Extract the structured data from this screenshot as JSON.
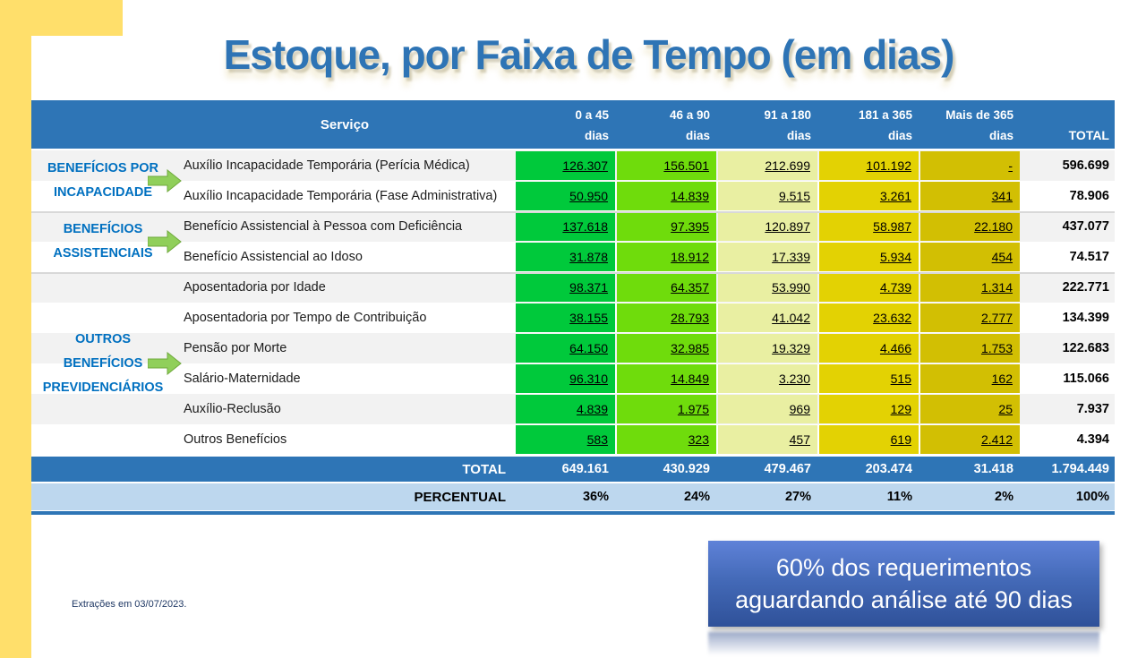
{
  "slide": {
    "title": "Estoque, por Faixa de Tempo (em dias)",
    "footnote": "Extrações em 03/07/2023.",
    "callout_lines": [
      "60% dos requerimentos",
      "aguardando análise até 90 dias"
    ]
  },
  "table": {
    "service_header": "Serviço",
    "total_label": "TOTAL",
    "columns": [
      {
        "label": "0 a 45",
        "sub": "dias",
        "color": "#00C93B"
      },
      {
        "label": "46 a 90",
        "sub": "dias",
        "color": "#6FDC0C"
      },
      {
        "label": "91 a 180",
        "sub": "dias",
        "color": "#E9EFA2"
      },
      {
        "label": "181 a 365",
        "sub": "dias",
        "color": "#E3D203"
      },
      {
        "label": "Mais de 365",
        "sub": "dias",
        "color": "#D2BF03"
      }
    ],
    "groups": [
      {
        "lines": [
          "BENEFÍCIOS POR",
          "INCAPACIDADE"
        ]
      },
      {
        "lines": [
          "BENEFÍCIOS",
          "ASSISTENCIAIS"
        ]
      },
      {
        "lines": [
          "OUTROS",
          "BENEFÍCIOS",
          "PREVIDENCIÁRIOS"
        ]
      }
    ],
    "rows": [
      {
        "service": "Auxílio Incapacidade Temporária (Perícia Médica)",
        "values": [
          "126.307",
          "156.501",
          "212.699",
          "101.192",
          "-"
        ],
        "total": "596.699"
      },
      {
        "service": "Auxílio Incapacidade Temporária (Fase Administrativa)",
        "values": [
          "50.950",
          "14.839",
          "9.515",
          "3.261",
          "341"
        ],
        "total": "78.906"
      },
      {
        "service": "Benefício Assistencial à Pessoa com Deficiência",
        "values": [
          "137.618",
          "97.395",
          "120.897",
          "58.987",
          "22.180"
        ],
        "total": "437.077"
      },
      {
        "service": "Benefício Assistencial ao Idoso",
        "values": [
          "31.878",
          "18.912",
          "17.339",
          "5.934",
          "454"
        ],
        "total": "74.517"
      },
      {
        "service": "Aposentadoria por Idade",
        "values": [
          "98.371",
          "64.357",
          "53.990",
          "4.739",
          "1.314"
        ],
        "total": "222.771"
      },
      {
        "service": "Aposentadoria por Tempo de Contribuição",
        "values": [
          "38.155",
          "28.793",
          "41.042",
          "23.632",
          "2.777"
        ],
        "total": "134.399"
      },
      {
        "service": "Pensão por Morte",
        "values": [
          "64.150",
          "32.985",
          "19.329",
          "4.466",
          "1.753"
        ],
        "total": "122.683"
      },
      {
        "service": "Salário-Maternidade",
        "values": [
          "96.310",
          "14.849",
          "3.230",
          "515",
          "162"
        ],
        "total": "115.066"
      },
      {
        "service": "Auxílio-Reclusão",
        "values": [
          "4.839",
          "1.975",
          "969",
          "129",
          "25"
        ],
        "total": "7.937"
      },
      {
        "service": "Outros Benefícios",
        "values": [
          "583",
          "323",
          "457",
          "619",
          "2.412"
        ],
        "total": "4.394"
      }
    ],
    "total_row": {
      "label": "TOTAL",
      "values": [
        "649.161",
        "430.929",
        "479.467",
        "203.474",
        "31.418"
      ],
      "total": "1.794.449"
    },
    "percent_row": {
      "label": "PERCENTUAL",
      "values": [
        "36%",
        "24%",
        "27%",
        "11%",
        "2%"
      ],
      "total": "100%"
    }
  },
  "chart_data": {
    "type": "table",
    "title": "Estoque, por Faixa de Tempo (em dias)",
    "columns": [
      "0 a 45 dias",
      "46 a 90 dias",
      "91 a 180 dias",
      "181 a 365 dias",
      "Mais de 365 dias",
      "TOTAL"
    ],
    "row_groups": [
      {
        "group": "BENEFÍCIOS POR INCAPACIDADE",
        "services": [
          "Auxílio Incapacidade Temporária (Perícia Médica)",
          "Auxílio Incapacidade Temporária (Fase Administrativa)"
        ]
      },
      {
        "group": "BENEFÍCIOS ASSISTENCIAIS",
        "services": [
          "Benefício Assistencial à Pessoa com Deficiência",
          "Benefício Assistencial ao Idoso"
        ]
      },
      {
        "group": "OUTROS BENEFÍCIOS PREVIDENCIÁRIOS",
        "services": [
          "Aposentadoria por Idade",
          "Aposentadoria por Tempo de Contribuição",
          "Pensão por Morte",
          "Salário-Maternidade",
          "Auxílio-Reclusão",
          "Outros Benefícios"
        ]
      }
    ],
    "rows": [
      {
        "service": "Auxílio Incapacidade Temporária (Perícia Médica)",
        "values": [
          126307,
          156501,
          212699,
          101192,
          null
        ],
        "total": 596699
      },
      {
        "service": "Auxílio Incapacidade Temporária (Fase Administrativa)",
        "values": [
          50950,
          14839,
          9515,
          3261,
          341
        ],
        "total": 78906
      },
      {
        "service": "Benefício Assistencial à Pessoa com Deficiência",
        "values": [
          137618,
          97395,
          120897,
          58987,
          22180
        ],
        "total": 437077
      },
      {
        "service": "Benefício Assistencial ao Idoso",
        "values": [
          31878,
          18912,
          17339,
          5934,
          454
        ],
        "total": 74517
      },
      {
        "service": "Aposentadoria por Idade",
        "values": [
          98371,
          64357,
          53990,
          4739,
          1314
        ],
        "total": 222771
      },
      {
        "service": "Aposentadoria por Tempo de Contribuição",
        "values": [
          38155,
          28793,
          41042,
          23632,
          2777
        ],
        "total": 134399
      },
      {
        "service": "Pensão por Morte",
        "values": [
          64150,
          32985,
          19329,
          4466,
          1753
        ],
        "total": 122683
      },
      {
        "service": "Salário-Maternidade",
        "values": [
          96310,
          14849,
          3230,
          515,
          162
        ],
        "total": 115066
      },
      {
        "service": "Auxílio-Reclusão",
        "values": [
          4839,
          1975,
          969,
          129,
          25
        ],
        "total": 7937
      },
      {
        "service": "Outros Benefícios",
        "values": [
          583,
          323,
          457,
          619,
          2412
        ],
        "total": 4394
      }
    ],
    "column_totals": [
      649161,
      430929,
      479467,
      203474,
      31418,
      1794449
    ],
    "column_percentages": [
      "36%",
      "24%",
      "27%",
      "11%",
      "2%",
      "100%"
    ],
    "annotation": "60% dos requerimentos aguardando análise até 90 dias",
    "footnote": "Extrações em 03/07/2023."
  }
}
